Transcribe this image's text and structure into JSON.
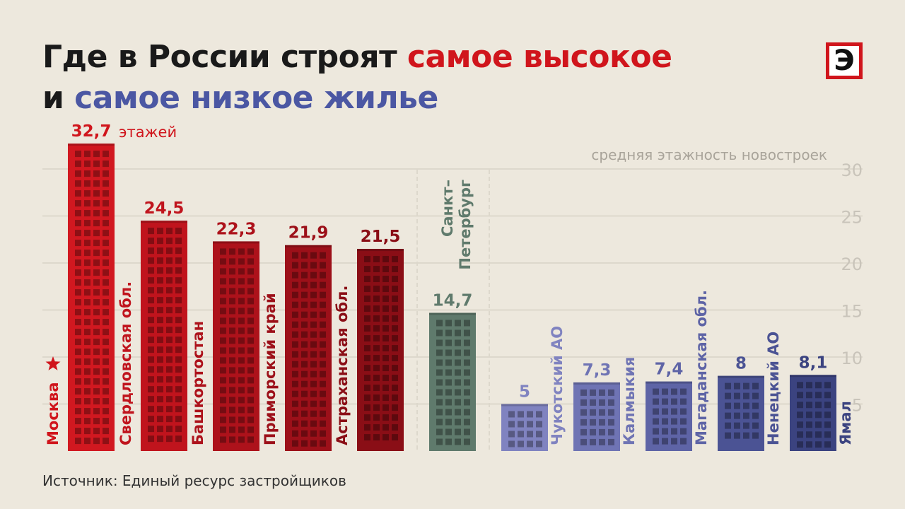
{
  "title": {
    "part1": "Где в России строят ",
    "part2": "самое высокое",
    "part3": "и ",
    "part4": "самое низкое жилье"
  },
  "logo": {
    "letter": "Э"
  },
  "source": "Источник: Единый ресурс застройщиков",
  "colors": {
    "background": "#ede8dd",
    "red": "#d0151c",
    "blue": "#4b57a3",
    "spb": "#5f7a6c",
    "grid": "#ddd8cc",
    "tick": "#c9c4ba"
  },
  "chart_data": {
    "type": "bar",
    "ylabel": "средняя этажность новостроек",
    "unit": "этажей",
    "ylim": [
      0,
      30
    ],
    "yticks": [
      5,
      10,
      15,
      20,
      25,
      30
    ],
    "grid": true,
    "categories": [
      "Москва",
      "Свердловская обл.",
      "Башкортостан",
      "Приморский край",
      "Астраханская обл.",
      "Санкт-Петербург",
      "Чукотский АО",
      "Калмыкия",
      "Магаданская обл.",
      "Ненецкий АО",
      "Ямал"
    ],
    "category_labels": [
      "Москва",
      "Свердловская обл.",
      "Башкортостан",
      "Приморский край",
      "Астраханская обл.",
      "Санкт–\nПетербург",
      "Чукотский АО",
      "Калмыкия",
      "Магаданская обл.",
      "Ненецкий АО",
      "Ямал"
    ],
    "value_labels": [
      "32,7",
      "24,5",
      "22,3",
      "21,9",
      "21,5",
      "14,7",
      "5",
      "7,3",
      "7,4",
      "8",
      "8,1"
    ],
    "values": [
      32.7,
      24.5,
      22.3,
      21.9,
      21.5,
      14.7,
      5,
      7.3,
      7.4,
      8,
      8.1
    ],
    "groups": [
      "high",
      "high",
      "high",
      "high",
      "high",
      "spb",
      "low",
      "low",
      "low",
      "low",
      "low"
    ],
    "bar_colors": [
      "#d11820",
      "#c0141d",
      "#ad121b",
      "#9c1019",
      "#8a0e16",
      "#5f7a6c",
      "#8083c0",
      "#6f74b4",
      "#5e64a6",
      "#4b5394",
      "#3b4380"
    ],
    "label_colors": [
      "#d0151c",
      "#c0141d",
      "#ad121b",
      "#9c1019",
      "#8a0e16",
      "#5f7a6c",
      "#8083c0",
      "#6f74b4",
      "#5e64a6",
      "#4b5394",
      "#3b4380"
    ],
    "highlight_marker": {
      "category": "Москва",
      "icon": "star-icon"
    }
  }
}
